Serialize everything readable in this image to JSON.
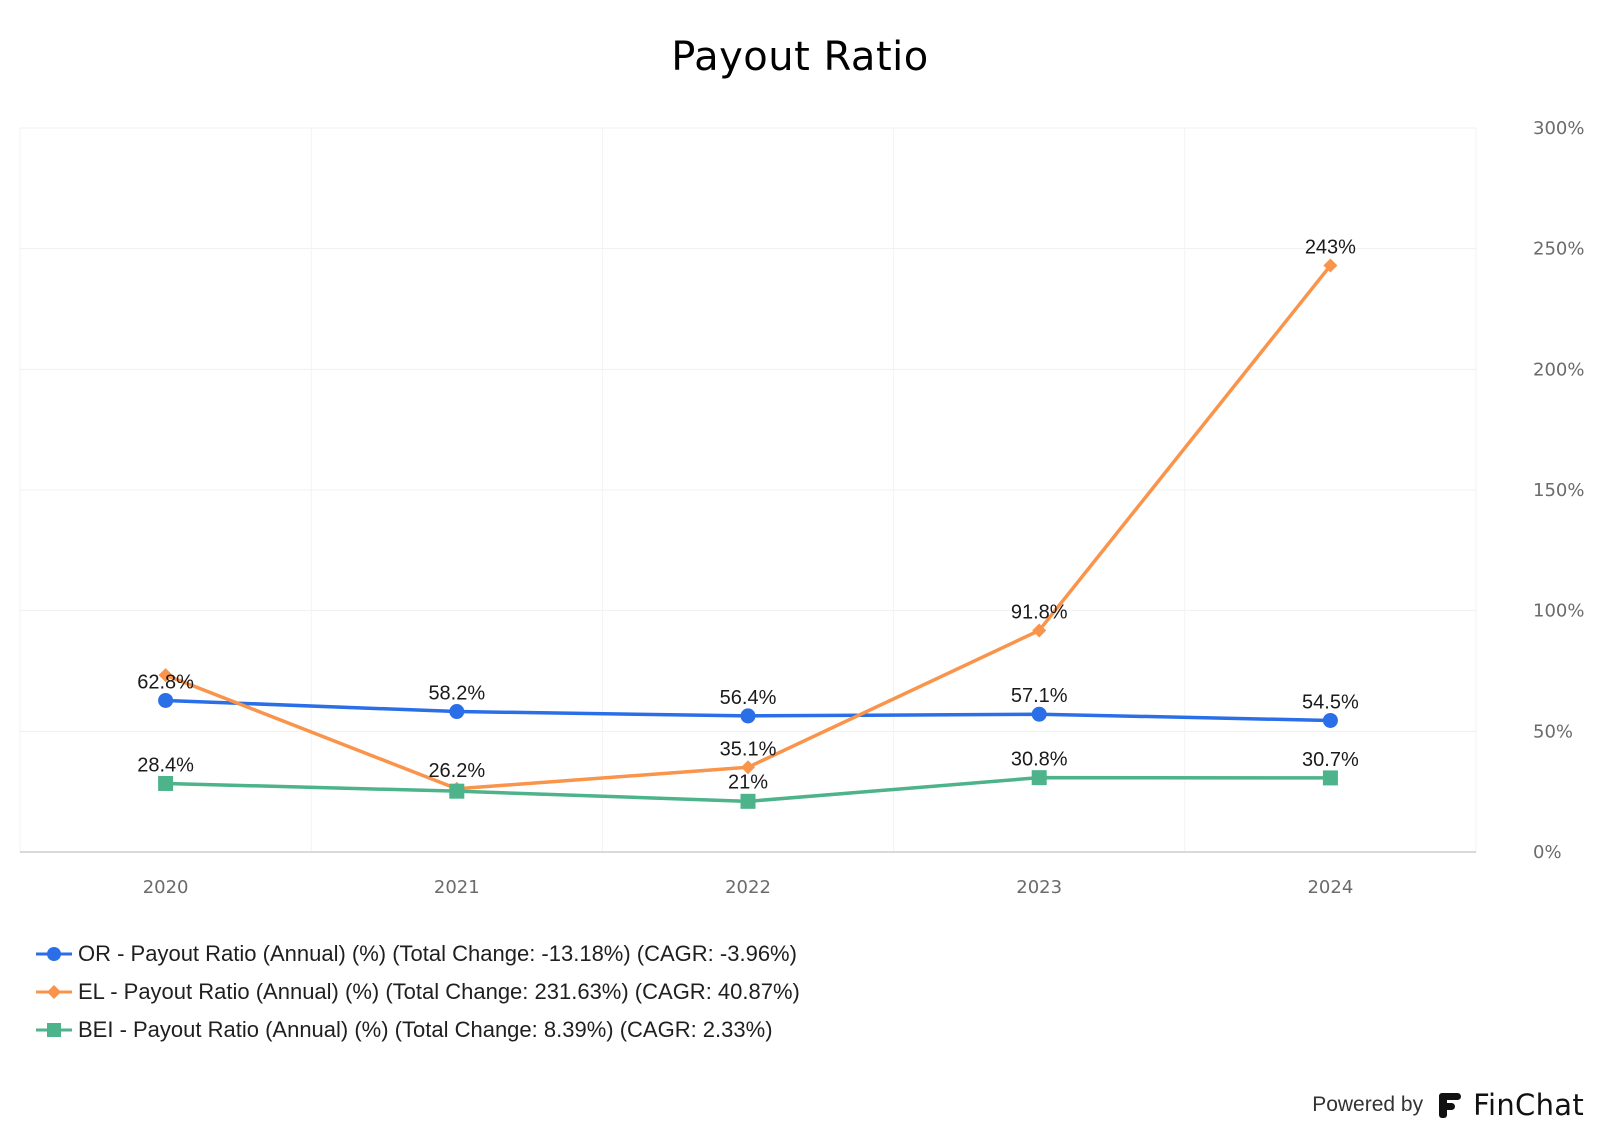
{
  "brand": {
    "powered_by": "Powered by",
    "name": "FinChat",
    "logo_icon": "finchat-logo-icon"
  },
  "chart_data": {
    "type": "line",
    "title": "Payout Ratio",
    "xlabel": "",
    "ylabel": "",
    "categories": [
      "2020",
      "2021",
      "2022",
      "2023",
      "2024"
    ],
    "y_ticks": [
      "0%",
      "50%",
      "100%",
      "150%",
      "200%",
      "250%",
      "300%"
    ],
    "ylim": [
      0,
      300
    ],
    "y_axis_position": "right",
    "grid": true,
    "legend_position": "bottom-left",
    "series": [
      {
        "name": "OR - Payout Ratio (Annual) (%) (Total Change: -13.18%) (CAGR: -3.96%)",
        "color": "#2a6fe8",
        "marker": "circle",
        "values": [
          62.8,
          58.2,
          56.4,
          57.1,
          54.5
        ],
        "labels": [
          "62.8%",
          "58.2%",
          "56.4%",
          "57.1%",
          "54.5%"
        ]
      },
      {
        "name": "EL - Payout Ratio (Annual) (%) (Total Change: 231.63%) (CAGR: 40.87%)",
        "color": "#f9944a",
        "marker": "diamond",
        "values": [
          73.3,
          26.2,
          35.1,
          91.8,
          243
        ],
        "labels": [
          "",
          "26.2%",
          "35.1%",
          "91.8%",
          "243%"
        ]
      },
      {
        "name": "BEI - Payout Ratio (Annual) (%) (Total Change: 8.39%) (CAGR: 2.33%)",
        "color": "#4cb38a",
        "marker": "square",
        "values": [
          28.4,
          25.2,
          21,
          30.8,
          30.7
        ],
        "labels": [
          "28.4%",
          "",
          "21%",
          "30.8%",
          "30.7%"
        ]
      }
    ]
  }
}
